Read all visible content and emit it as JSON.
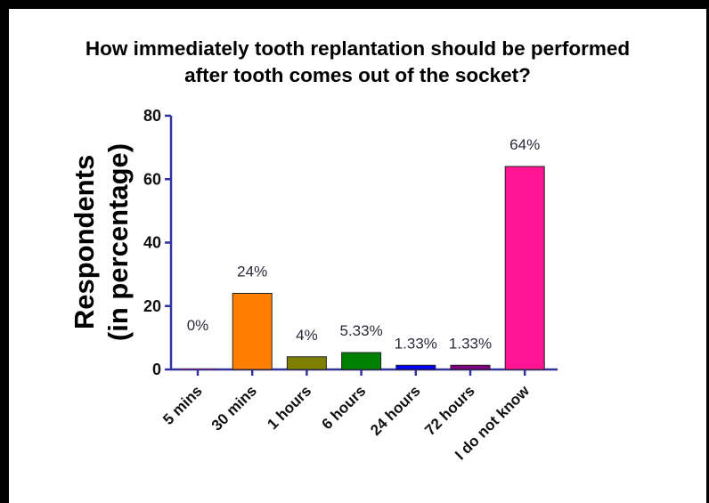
{
  "chart_data": {
    "type": "bar",
    "title_lines": [
      "How immediately tooth replantation should be performed",
      "after tooth comes out of the socket?"
    ],
    "ylabel_lines": [
      "Respondents",
      "(in percentage)"
    ],
    "xlabel": "",
    "ylim": [
      0,
      80
    ],
    "yticks": [
      0,
      20,
      40,
      60,
      80
    ],
    "categories": [
      "5 mins",
      "30 mins",
      "1 hours",
      "6 hours",
      "24 hours",
      "72 hours",
      "I do not know"
    ],
    "values": [
      0,
      24,
      4,
      5.33,
      1.33,
      1.33,
      64
    ],
    "data_labels": [
      "0%",
      "24%",
      "4%",
      "5.33%",
      "1.33%",
      "1.33%",
      "64%"
    ],
    "colors": [
      "#8b0000",
      "#ff7f00",
      "#808000",
      "#008000",
      "#0000ff",
      "#800080",
      "#ff1493"
    ],
    "axis_color": "#3333a0",
    "grid": false,
    "legend": "none"
  }
}
